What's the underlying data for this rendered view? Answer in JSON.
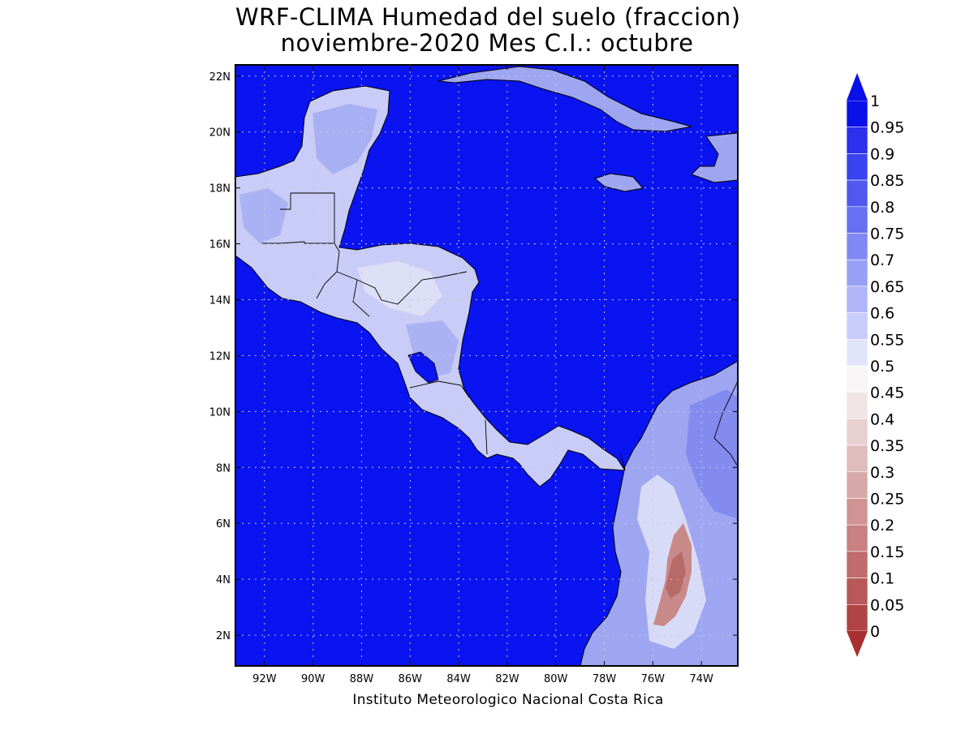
{
  "title": {
    "line1": "WRF-CLIMA Humedad del suelo (fraccion)",
    "line2": "noviembre-2020 Mes C.I.: octubre"
  },
  "credit": "Instituto Meteorologico Nacional Costa Rica",
  "map": {
    "lon_range": [
      -93.2,
      -72.5
    ],
    "lat_range": [
      0.9,
      22.4
    ],
    "x_ticks": [
      "92W",
      "90W",
      "88W",
      "86W",
      "84W",
      "82W",
      "80W",
      "78W",
      "76W",
      "74W"
    ],
    "x_tick_values": [
      -92,
      -90,
      -88,
      -86,
      -84,
      -82,
      -80,
      -78,
      -76,
      -74
    ],
    "y_ticks": [
      "22N",
      "20N",
      "18N",
      "16N",
      "14N",
      "12N",
      "10N",
      "8N",
      "6N",
      "4N",
      "2N"
    ],
    "y_tick_values": [
      22,
      20,
      18,
      16,
      14,
      12,
      10,
      8,
      6,
      4,
      2
    ],
    "grid": true,
    "ocean_color": "#0a14f0",
    "land_colors": [
      "#c8ccf6",
      "#9ea6f2",
      "#7880ee",
      "#e2e4f8"
    ],
    "dry_color": "#c88a88"
  },
  "colorbar": {
    "labels": [
      "1",
      "0.95",
      "0.9",
      "0.85",
      "0.8",
      "0.75",
      "0.7",
      "0.65",
      "0.6",
      "0.55",
      "0.5",
      "0.45",
      "0.4",
      "0.35",
      "0.3",
      "0.25",
      "0.2",
      "0.15",
      "0.1",
      "0.05",
      "0"
    ],
    "colors": [
      "#0a10e8",
      "#2a30ec",
      "#3a44ee",
      "#5058f0",
      "#6870f2",
      "#8088f4",
      "#98a0f6",
      "#b0b6f8",
      "#c8ccfa",
      "#e2e4fc",
      "#f8f6f6",
      "#f0e4e4",
      "#e8d0d0",
      "#e0bcbc",
      "#d8a8a8",
      "#d09494",
      "#c88080",
      "#c06c6c",
      "#b85858",
      "#b04444",
      "#a83030"
    ]
  }
}
